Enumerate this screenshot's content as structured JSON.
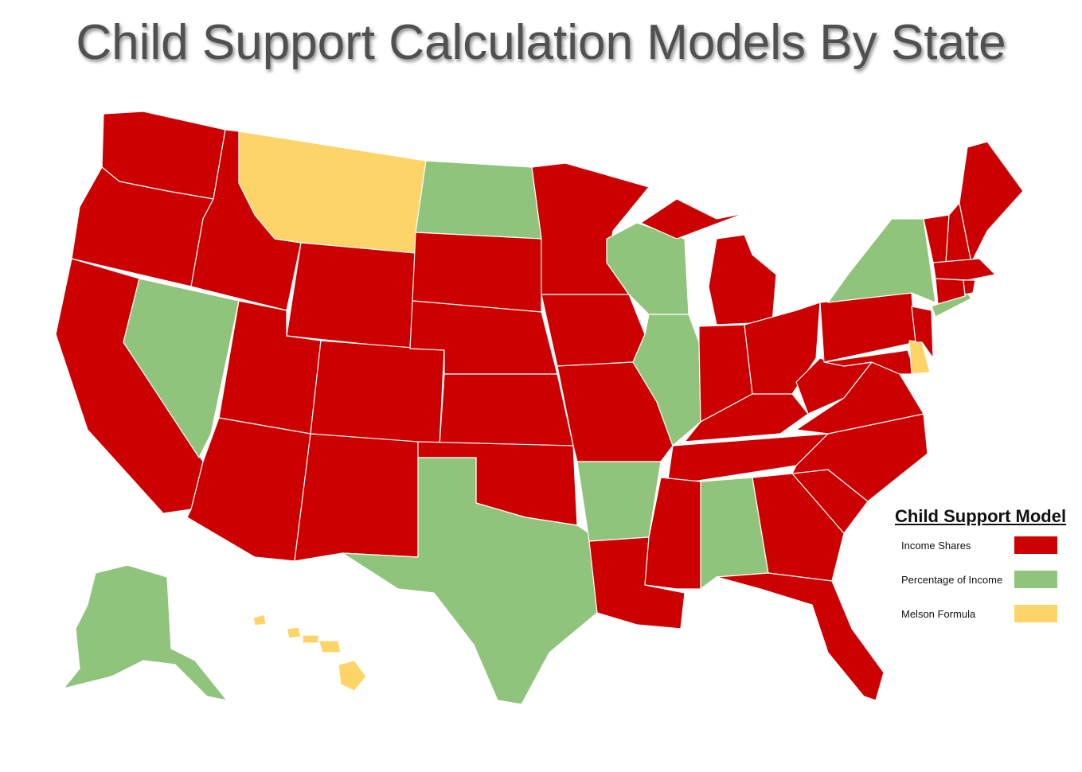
{
  "title": "Child Support Calculation Models By State",
  "colors": {
    "income_shares": "#cc0000",
    "percentage_of_income": "#90c47c",
    "melson_formula": "#fdd468"
  },
  "legend": {
    "title": "Child Support Model",
    "items": [
      {
        "label": "Income Shares",
        "key": "income_shares"
      },
      {
        "label": "Percentage of Income",
        "key": "percentage_of_income"
      },
      {
        "label": "Melson Formula",
        "key": "melson_formula"
      }
    ]
  },
  "models": {
    "WA": "income_shares",
    "OR": "income_shares",
    "CA": "income_shares",
    "ID": "income_shares",
    "NV": "percentage_of_income",
    "MT": "melson_formula",
    "WY": "income_shares",
    "UT": "income_shares",
    "AZ": "income_shares",
    "CO": "income_shares",
    "NM": "income_shares",
    "ND": "percentage_of_income",
    "SD": "income_shares",
    "NE": "income_shares",
    "KS": "income_shares",
    "OK": "income_shares",
    "TX": "percentage_of_income",
    "MN": "income_shares",
    "IA": "income_shares",
    "MO": "income_shares",
    "AR": "percentage_of_income",
    "LA": "income_shares",
    "WI": "percentage_of_income",
    "IL": "percentage_of_income",
    "MI": "income_shares",
    "IN": "income_shares",
    "OH": "income_shares",
    "KY": "income_shares",
    "TN": "income_shares",
    "MS": "income_shares",
    "AL": "percentage_of_income",
    "GA": "income_shares",
    "FL": "income_shares",
    "SC": "income_shares",
    "NC": "income_shares",
    "VA": "income_shares",
    "WV": "income_shares",
    "MD": "income_shares",
    "DE": "melson_formula",
    "NJ": "income_shares",
    "PA": "income_shares",
    "NY": "percentage_of_income",
    "CT": "income_shares",
    "RI": "income_shares",
    "MA": "income_shares",
    "VT": "income_shares",
    "NH": "income_shares",
    "ME": "income_shares",
    "AK": "percentage_of_income",
    "HI": "melson_formula"
  }
}
